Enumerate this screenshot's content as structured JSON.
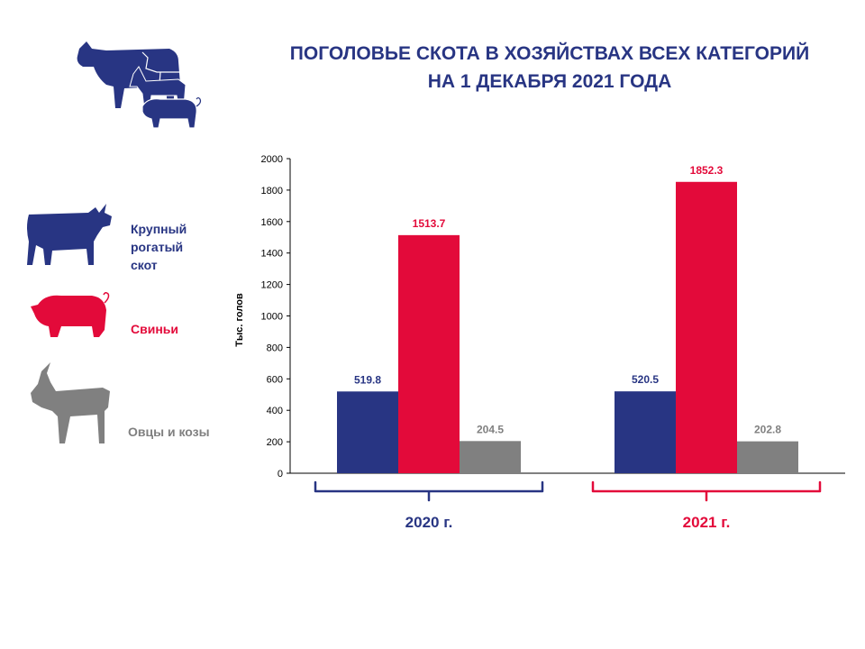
{
  "title": {
    "line1": "ПОГОЛОВЬЕ СКОТА В ХОЗЯЙСТВАХ ВСЕХ КАТЕГОРИЙ",
    "line2": "НА 1 ДЕКАБРЯ 2021 ГОДА"
  },
  "legend": {
    "cattle": {
      "lines": [
        "Крупный",
        "рогатый",
        "скот"
      ],
      "color": "#283583",
      "icon": "cow-icon"
    },
    "pigs": {
      "lines": [
        "Свиньи"
      ],
      "color": "#e30a3a",
      "icon": "pig-icon"
    },
    "sheep": {
      "lines": [
        "Овцы и козы"
      ],
      "color": "#808080",
      "icon": "goat-icon"
    }
  },
  "header_icon": "livestock-group-icon",
  "chart_data": {
    "type": "bar",
    "categories": [
      "2020 г.",
      "2021 г."
    ],
    "category_colors": [
      "#283583",
      "#e30a3a"
    ],
    "series": [
      {
        "name": "Крупный рогатый скот",
        "color": "#283583",
        "values": [
          519.8,
          520.5
        ]
      },
      {
        "name": "Свиньи",
        "color": "#e30a3a",
        "values": [
          1513.7,
          1852.3
        ]
      },
      {
        "name": "Овцы и козы",
        "color": "#808080",
        "values": [
          204.5,
          202.8
        ]
      }
    ],
    "data_labels": [
      [
        "519.8",
        "520.5"
      ],
      [
        "1513.7",
        "1852.3"
      ],
      [
        "204.5",
        "202.8"
      ]
    ],
    "ylabel": "Тыс. голов",
    "ylim": [
      0,
      2000
    ],
    "yticks": [
      "0",
      "200",
      "400",
      "600",
      "800",
      "1000",
      "1200",
      "1400",
      "1600",
      "1800",
      "2000"
    ],
    "grid": false,
    "legend": "left"
  }
}
